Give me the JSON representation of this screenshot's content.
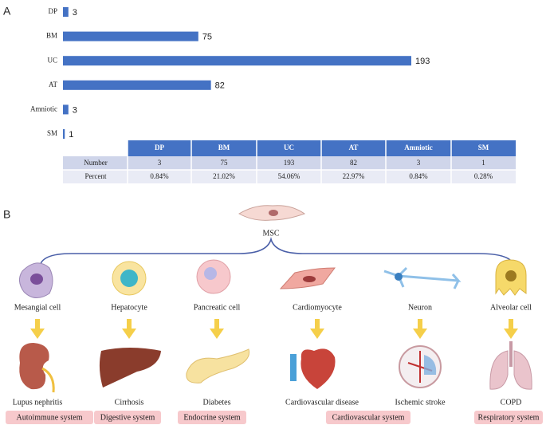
{
  "panels": [
    "A",
    "B"
  ],
  "chart_data": {
    "type": "bar",
    "orientation": "horizontal",
    "categories": [
      "DP",
      "BM",
      "UC",
      "AT",
      "Amniotic",
      "SM"
    ],
    "values": [
      3,
      75,
      193,
      82,
      3,
      1
    ],
    "color": "#4472c4"
  },
  "table": {
    "columns": [
      "DP",
      "BM",
      "UC",
      "AT",
      "Amniotic",
      "SM"
    ],
    "rows": [
      {
        "label": "Number",
        "cells": [
          "3",
          "75",
          "193",
          "82",
          "3",
          "1"
        ]
      },
      {
        "label": "Percent",
        "cells": [
          "0.84%",
          "21.02%",
          "54.06%",
          "22.97%",
          "0.84%",
          "0.28%"
        ]
      }
    ]
  },
  "diagram": {
    "center": "MSC",
    "columns": [
      {
        "cell": "Mesangial cell",
        "disease": "Lupus nephritis"
      },
      {
        "cell": "Hepatocyte",
        "disease": "Cirrhosis"
      },
      {
        "cell": "Pancreatic cell",
        "disease": "Diabetes"
      },
      {
        "cell": "Cardiomyocyte",
        "disease": "Cardiovascular disease"
      },
      {
        "cell": "Neuron",
        "disease": "Ischemic stroke"
      },
      {
        "cell": "Alveolar cell",
        "disease": "COPD"
      }
    ],
    "systems": [
      "Autoimmune system",
      "Digestive system",
      "Endocrine system",
      "Cardiovascular system",
      "Respiratory system"
    ]
  }
}
